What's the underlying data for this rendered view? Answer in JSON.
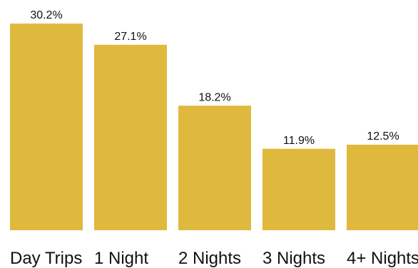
{
  "chart_data": {
    "type": "bar",
    "categories": [
      "Day Trips",
      "1 Night",
      "2 Nights",
      "3 Nights",
      "4+ Nights"
    ],
    "values": [
      30.2,
      27.1,
      18.2,
      11.9,
      12.5
    ],
    "value_labels": [
      "30.2%",
      "27.1%",
      "18.2%",
      "11.9%",
      "12.5%"
    ],
    "unit": "%",
    "bar_color": "#DFB93D",
    "grid": false,
    "legend": "none"
  }
}
